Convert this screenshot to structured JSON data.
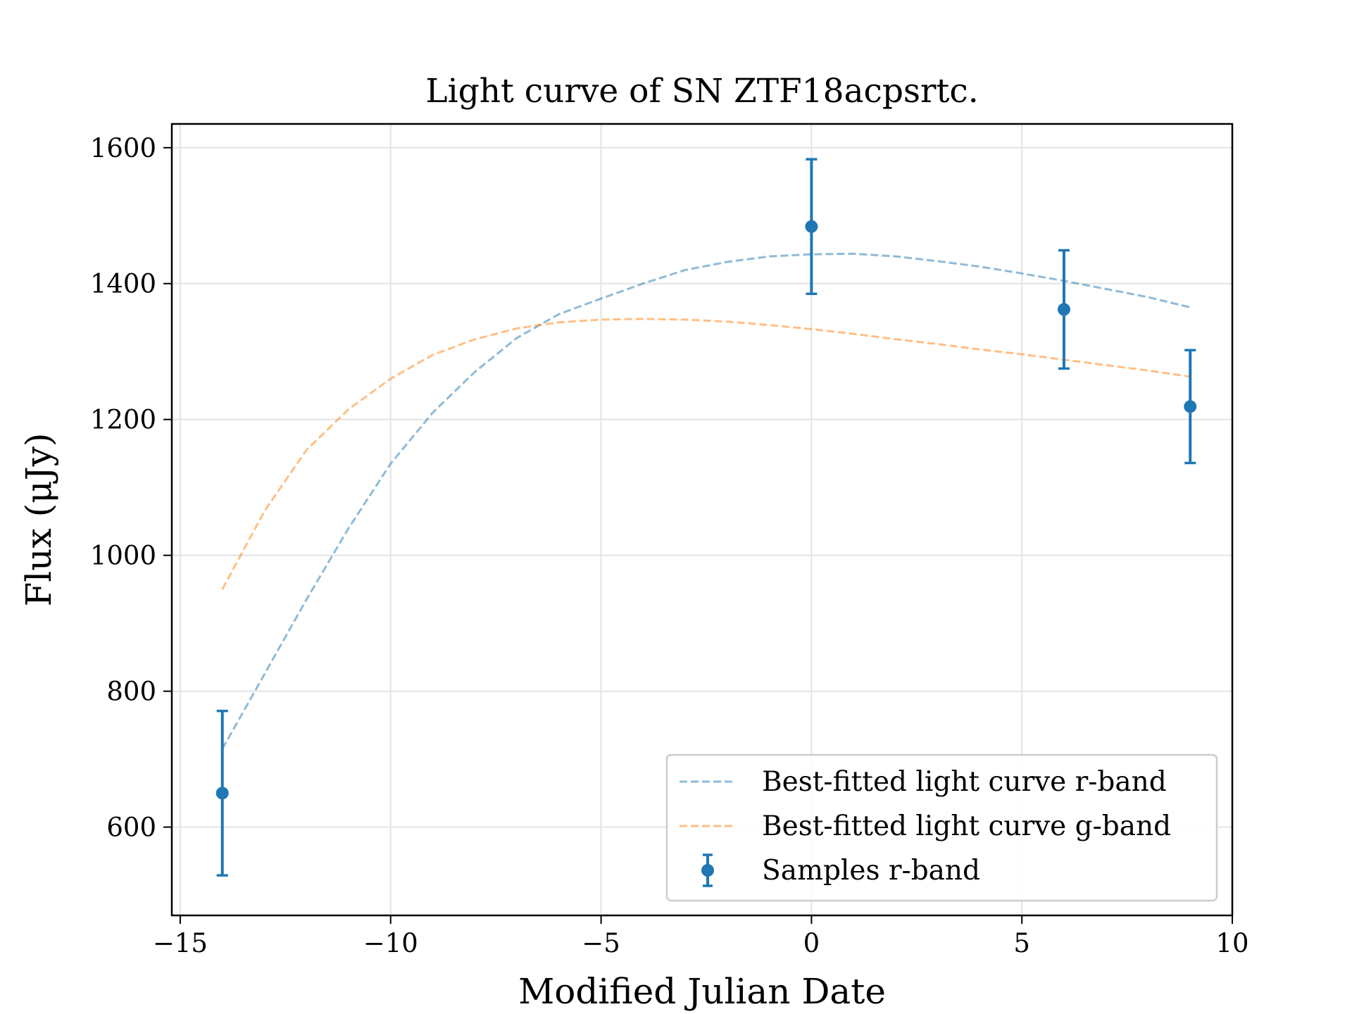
{
  "chart_data": {
    "type": "line",
    "title": "Light curve of SN ZTF18acpsrtc.",
    "xlabel": "Modified Julian Date",
    "ylabel": "Flux (μJy)",
    "xlim": [
      -15.2,
      10.0
    ],
    "ylim": [
      470,
      1635
    ],
    "grid": true,
    "legend_position": "lower-right",
    "xticks": [
      -15,
      -10,
      -5,
      0,
      5,
      10
    ],
    "xtick_labels": [
      "−15",
      "−10",
      "−5",
      "0",
      "5",
      "10"
    ],
    "yticks": [
      600,
      800,
      1000,
      1200,
      1400,
      1600
    ],
    "ytick_labels": [
      "600",
      "800",
      "1000",
      "1200",
      "1400",
      "1600"
    ],
    "series": [
      {
        "name": "Best-fitted light curve r-band",
        "style": "dashed",
        "color": "#1f77b4",
        "alpha": 0.5,
        "x": [
          -14.0,
          -13.0,
          -12.0,
          -11.0,
          -10.0,
          -9.0,
          -8.0,
          -7.0,
          -6.0,
          -5.0,
          -4.0,
          -3.0,
          -2.0,
          -1.0,
          0.0,
          1.0,
          2.0,
          3.0,
          4.0,
          5.0,
          6.0,
          7.0,
          8.0,
          9.0
        ],
        "y": [
          715,
          825,
          935,
          1040,
          1135,
          1210,
          1270,
          1320,
          1355,
          1378,
          1400,
          1420,
          1432,
          1440,
          1443,
          1444,
          1440,
          1433,
          1425,
          1415,
          1404,
          1392,
          1380,
          1365
        ]
      },
      {
        "name": "Best-fitted light curve g-band",
        "style": "dashed",
        "color": "#ff7f0e",
        "alpha": 0.5,
        "x": [
          -14.0,
          -13.0,
          -12.0,
          -11.0,
          -10.0,
          -9.0,
          -8.0,
          -7.0,
          -6.0,
          -5.0,
          -4.0,
          -3.0,
          -2.0,
          -1.0,
          0.0,
          1.0,
          2.0,
          3.0,
          4.0,
          5.0,
          6.0,
          7.0,
          8.0,
          9.0
        ],
        "y": [
          950,
          1065,
          1155,
          1215,
          1260,
          1295,
          1318,
          1334,
          1343,
          1347,
          1348,
          1347,
          1344,
          1339,
          1333,
          1326,
          1318,
          1311,
          1303,
          1296,
          1288,
          1280,
          1272,
          1263
        ]
      },
      {
        "name": "Samples r-band",
        "style": "errorbar",
        "color": "#1f77b4",
        "x": [
          -14.0,
          0.0,
          6.0,
          9.0
        ],
        "y": [
          650,
          1484,
          1362,
          1219
        ],
        "yerr": [
          121,
          99,
          87,
          83
        ]
      }
    ]
  }
}
